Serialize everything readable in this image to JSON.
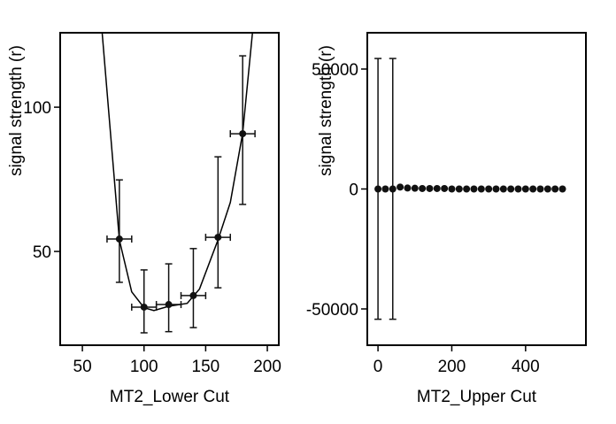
{
  "chart_data": [
    {
      "type": "scatter",
      "xlabel": "MT2_Lower Cut",
      "ylabel": "signal strength (r)",
      "color": "#111111",
      "x": [
        80,
        100,
        120,
        140,
        160,
        180
      ],
      "values": [
        54.3,
        30.7,
        31.6,
        34.7,
        54.9,
        90.8
      ],
      "yerr_minus": [
        15.0,
        8.9,
        9.4,
        11.1,
        17.5,
        24.5
      ],
      "yerr_plus": [
        20.5,
        12.9,
        14.1,
        16.3,
        27.9,
        27.0
      ],
      "xerr": [
        10,
        10,
        10,
        10,
        10,
        10
      ],
      "fit": {
        "x": [
          66,
          80,
          90,
          100,
          108,
          120,
          135,
          145,
          160,
          170,
          180,
          188
        ],
        "values": [
          126,
          54,
          36,
          30.5,
          29.5,
          31,
          32,
          37,
          54,
          67,
          91,
          126
        ]
      },
      "xlim": [
        32,
        209.3
      ],
      "ylim": [
        17.5,
        125.8
      ],
      "xticks": [
        50,
        100,
        150,
        200
      ],
      "yticks": [
        50,
        100
      ]
    },
    {
      "type": "scatter",
      "xlabel": "MT2_Upper Cut",
      "ylabel": "signal strength (r)",
      "color": "#111111",
      "x": [
        0,
        20,
        40,
        60,
        80,
        100,
        120,
        140,
        160,
        180,
        200,
        220,
        240,
        260,
        280,
        300,
        320,
        340,
        360,
        380,
        400,
        420,
        440,
        460,
        480,
        500
      ],
      "values": [
        0,
        0,
        0,
        800,
        400,
        300,
        200,
        200,
        200,
        200,
        0,
        0,
        0,
        0,
        0,
        0,
        0,
        0,
        0,
        0,
        0,
        0,
        0,
        0,
        0,
        0
      ],
      "yerr_minus": [
        54300,
        0,
        54300,
        0,
        0,
        0,
        0,
        0,
        0,
        0,
        0,
        0,
        0,
        0,
        0,
        0,
        0,
        0,
        0,
        0,
        0,
        0,
        0,
        0,
        0,
        0
      ],
      "yerr_plus": [
        54400,
        0,
        54400,
        0,
        0,
        0,
        0,
        0,
        0,
        0,
        0,
        0,
        0,
        0,
        0,
        0,
        0,
        0,
        0,
        0,
        0,
        0,
        0,
        0,
        0,
        0
      ],
      "xlim": [
        -29,
        563.5
      ],
      "ylim": [
        -65130,
        65130
      ],
      "xticks": [
        0,
        200,
        400
      ],
      "yticks": [
        -50000,
        0,
        50000
      ]
    }
  ]
}
